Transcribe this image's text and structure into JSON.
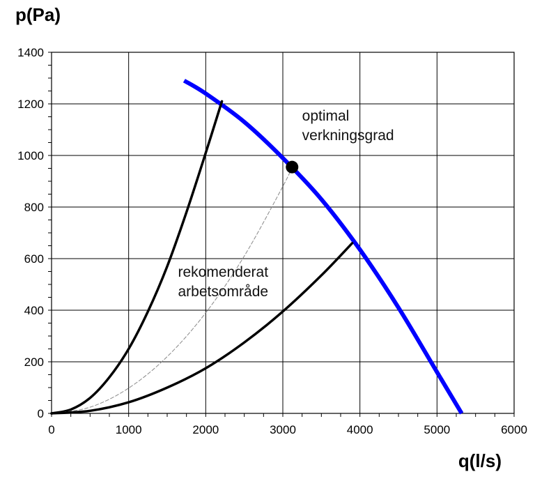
{
  "chart_data": {
    "type": "line",
    "xlabel": "q(l/s)",
    "ylabel": "p(Pa)",
    "xlim": [
      0,
      6000
    ],
    "ylim": [
      0,
      1400
    ],
    "x_ticks": [
      0,
      1000,
      2000,
      3000,
      4000,
      5000,
      6000
    ],
    "y_ticks": [
      0,
      200,
      400,
      600,
      800,
      1000,
      1200,
      1400
    ],
    "x_tick_labels": [
      "0",
      "1000",
      "2000",
      "3000",
      "4000",
      "5000",
      "6000"
    ],
    "y_tick_labels": [
      "0",
      "200",
      "400",
      "600",
      "800",
      "1000",
      "1200",
      "1400"
    ],
    "grid": true,
    "series": [
      {
        "key": "fan-curve",
        "color": "#0000ff",
        "style": "solid",
        "x": [
          1720,
          2000,
          2500,
          3000,
          3500,
          4000,
          4500,
          5000,
          5320
        ],
        "y": [
          1290,
          1240,
          1130,
          990,
          830,
          635,
          410,
          160,
          0
        ]
      },
      {
        "key": "upper-system-curve",
        "color": "#000000",
        "style": "solid",
        "x": [
          0,
          250,
          500,
          750,
          1000,
          1250,
          1500,
          1750,
          2000,
          2210
        ],
        "y": [
          0,
          15,
          60,
          140,
          250,
          395,
          570,
          780,
          1010,
          1210
        ]
      },
      {
        "key": "optimal-system-curve",
        "color": "#888888",
        "style": "dashed",
        "x": [
          0,
          500,
          1000,
          1500,
          2000,
          2500,
          3000,
          3120
        ],
        "y": [
          0,
          24,
          98,
          220,
          390,
          610,
          880,
          955
        ]
      },
      {
        "key": "lower-system-curve",
        "color": "#000000",
        "style": "solid",
        "x": [
          0,
          500,
          1000,
          1500,
          2000,
          2500,
          3000,
          3500,
          3900
        ],
        "y": [
          0,
          10,
          43,
          100,
          175,
          275,
          395,
          535,
          660
        ]
      }
    ],
    "optimal_point": {
      "x": 3120,
      "y": 955
    },
    "annotations": [
      {
        "key": "optimal",
        "lines": [
          "optimal",
          "verkningsgrad"
        ],
        "x": 3250,
        "y": 1135
      },
      {
        "key": "range",
        "lines": [
          "rekomenderat",
          "arbetsområde"
        ],
        "x": 1640,
        "y": 530
      }
    ]
  }
}
